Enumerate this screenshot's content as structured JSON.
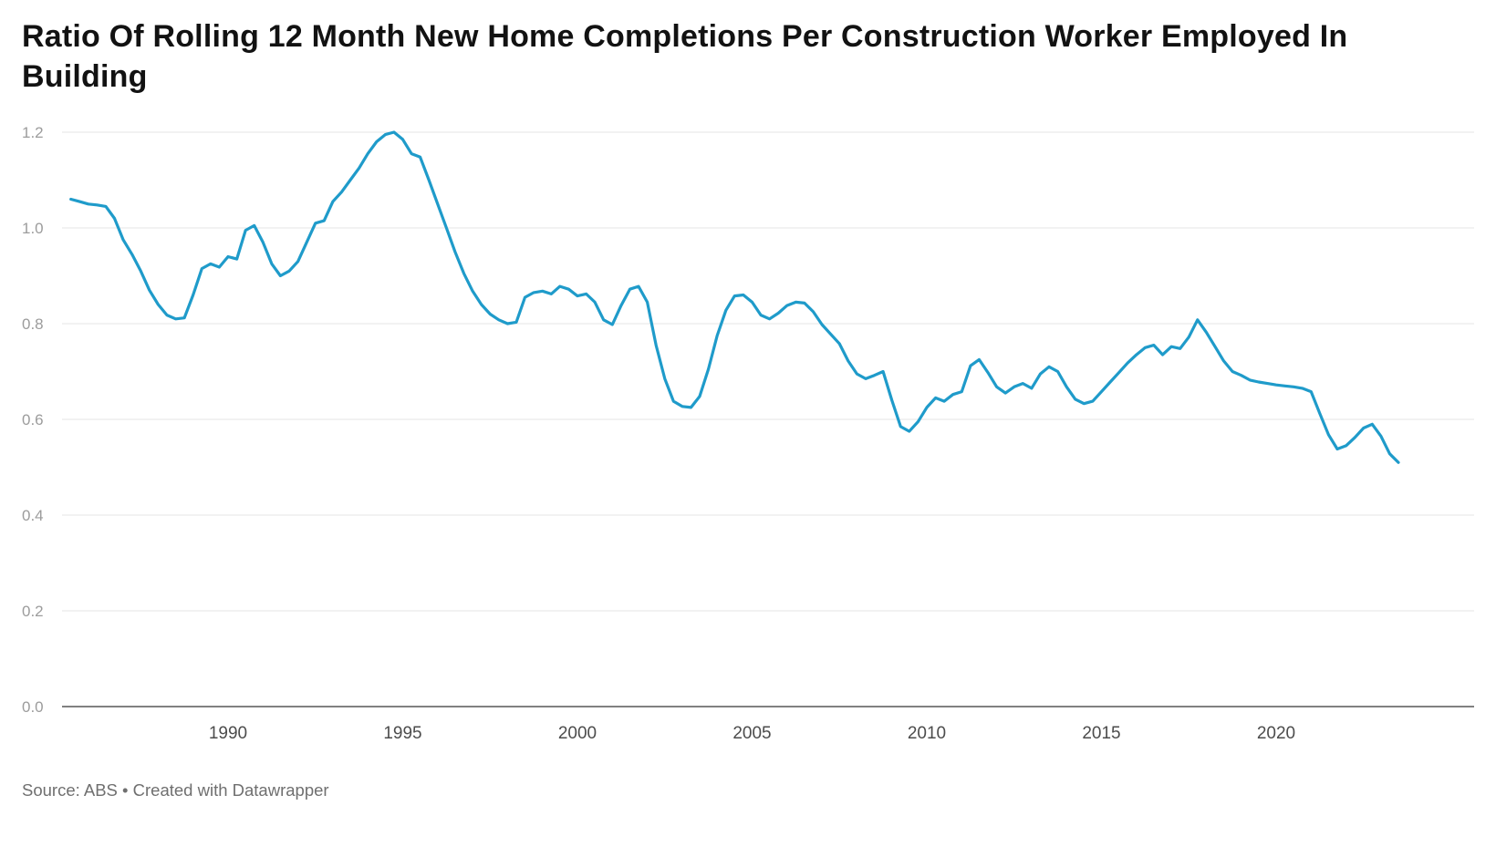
{
  "page": {
    "background": "#ffffff"
  },
  "header": {
    "title": "Ratio Of Rolling 12 Month New Home Completions Per Construction Worker Employed In Building"
  },
  "footer": {
    "source_text": "Source: ABS • Created with Datawrapper"
  },
  "colors": {
    "line": "#1f9bca",
    "grid": "#e6e6e6",
    "axis_baseline": "#000000",
    "ytick_text": "#9c9c9c",
    "xtick_text": "#4c4c4c",
    "title_text": "#121212",
    "source_text": "#6f6f6f"
  },
  "chart_data": {
    "type": "line",
    "title": "Ratio Of Rolling 12 Month New Home Completions Per Construction Worker Employed In Building",
    "xlabel": "",
    "ylabel": "",
    "x_unit": "year",
    "x_start": 1985.5,
    "x_step_years": 0.25,
    "x_end": 2023.5,
    "xlim": [
      1985.5,
      2023.5
    ],
    "ylim": [
      0,
      1.2
    ],
    "yticks": [
      0,
      0.2,
      0.4,
      0.6,
      0.8,
      1.0,
      1.2
    ],
    "ytick_labels": [
      "0.0",
      "0.2",
      "0.4",
      "0.6",
      "0.8",
      "1.0",
      "1.2"
    ],
    "xticks": [
      1990,
      1995,
      2000,
      2005,
      2010,
      2015,
      2020
    ],
    "xtick_labels": [
      "1990",
      "1995",
      "2000",
      "2005",
      "2010",
      "2015",
      "2020"
    ],
    "grid": "horizontal",
    "legend": "none",
    "line_color": "#1f9bca",
    "source": "ABS",
    "credit": "Created with Datawrapper",
    "values": [
      1.06,
      1.055,
      1.05,
      1.048,
      1.045,
      1.02,
      0.975,
      0.945,
      0.91,
      0.87,
      0.84,
      0.818,
      0.81,
      0.812,
      0.86,
      0.915,
      0.925,
      0.918,
      0.94,
      0.935,
      0.995,
      1.005,
      0.97,
      0.925,
      0.9,
      0.91,
      0.93,
      0.97,
      1.01,
      1.015,
      1.055,
      1.075,
      1.1,
      1.125,
      1.155,
      1.18,
      1.195,
      1.2,
      1.185,
      1.155,
      1.148,
      1.1,
      1.05,
      1.0,
      0.95,
      0.905,
      0.868,
      0.84,
      0.82,
      0.808,
      0.8,
      0.803,
      0.855,
      0.865,
      0.868,
      0.862,
      0.878,
      0.872,
      0.858,
      0.862,
      0.845,
      0.808,
      0.798,
      0.838,
      0.872,
      0.878,
      0.845,
      0.755,
      0.685,
      0.638,
      0.627,
      0.625,
      0.648,
      0.705,
      0.775,
      0.828,
      0.858,
      0.86,
      0.845,
      0.818,
      0.81,
      0.822,
      0.838,
      0.845,
      0.843,
      0.825,
      0.798,
      0.778,
      0.758,
      0.722,
      0.695,
      0.685,
      0.692,
      0.7,
      0.64,
      0.585,
      0.575,
      0.595,
      0.625,
      0.645,
      0.638,
      0.652,
      0.658,
      0.712,
      0.725,
      0.698,
      0.668,
      0.655,
      0.668,
      0.675,
      0.665,
      0.695,
      0.71,
      0.7,
      0.668,
      0.642,
      0.633,
      0.638,
      0.658,
      0.678,
      0.698,
      0.718,
      0.735,
      0.75,
      0.755,
      0.735,
      0.752,
      0.748,
      0.772,
      0.808,
      0.782,
      0.752,
      0.722,
      0.7,
      0.692,
      0.682,
      0.678,
      0.675,
      0.672,
      0.67,
      0.668,
      0.665,
      0.658,
      0.612,
      0.568,
      0.538,
      0.545,
      0.562,
      0.582,
      0.59,
      0.565,
      0.528,
      0.51
    ]
  }
}
